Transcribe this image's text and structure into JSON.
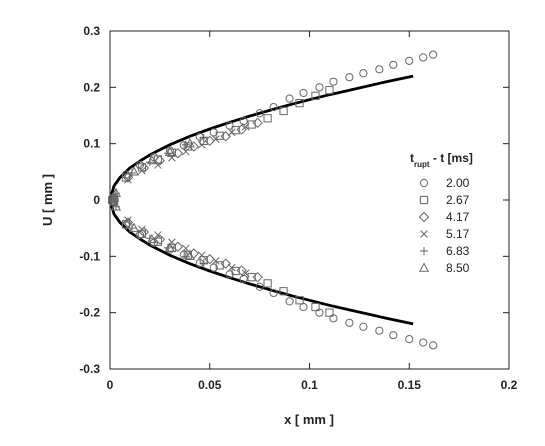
{
  "chart_data": {
    "type": "scatter",
    "xlabel": "x [ mm ]",
    "ylabel": "U [ mm ]",
    "xlim": [
      0,
      0.2
    ],
    "ylim": [
      -0.3,
      0.3
    ],
    "x_ticks": [
      "0",
      "0.05",
      "0.1",
      "0.15",
      "0.2"
    ],
    "y_ticks": [
      "0.3",
      "0.2",
      "0.1",
      "0",
      "-0.1",
      "-0.2",
      "-0.3"
    ],
    "x_tick_values": [
      0,
      0.05,
      0.1,
      0.15,
      0.2
    ],
    "y_tick_values": [
      0.3,
      0.2,
      0.1,
      0,
      -0.1,
      -0.2,
      -0.3
    ],
    "grid": false,
    "legend": {
      "position": "right",
      "title_main": "t",
      "title_sub": "rupt",
      "title_rest": " - t [ms]"
    },
    "fit_line": {
      "color": "#000000",
      "x": [
        0,
        0.002,
        0.005,
        0.01,
        0.015,
        0.02,
        0.03,
        0.04,
        0.05,
        0.06,
        0.07,
        0.08,
        0.09,
        0.1,
        0.11,
        0.12,
        0.13,
        0.14,
        0.152
      ],
      "upper": [
        0,
        0.025,
        0.04,
        0.057,
        0.069,
        0.08,
        0.098,
        0.113,
        0.126,
        0.138,
        0.149,
        0.159,
        0.169,
        0.178,
        0.187,
        0.195,
        0.203,
        0.211,
        0.22
      ],
      "lower": [
        0,
        -0.025,
        -0.04,
        -0.057,
        -0.069,
        -0.08,
        -0.098,
        -0.113,
        -0.126,
        -0.138,
        -0.149,
        -0.159,
        -0.169,
        -0.178,
        -0.187,
        -0.195,
        -0.203,
        -0.211,
        -0.22
      ]
    },
    "series": [
      {
        "name": "2.00",
        "marker": "circle",
        "x": [
          0.001,
          0.008,
          0.015,
          0.022,
          0.03,
          0.037,
          0.045,
          0.052,
          0.06,
          0.067,
          0.075,
          0.082,
          0.09,
          0.097,
          0.105,
          0.112,
          0.12,
          0.127,
          0.135,
          0.142,
          0.15,
          0.157,
          0.162
        ],
        "upper": [
          0.003,
          0.045,
          0.062,
          0.076,
          0.088,
          0.097,
          0.112,
          0.12,
          0.132,
          0.14,
          0.154,
          0.165,
          0.18,
          0.19,
          0.2,
          0.21,
          0.218,
          0.225,
          0.232,
          0.24,
          0.247,
          0.253,
          0.258
        ],
        "lower": [
          -0.003,
          -0.045,
          -0.062,
          -0.076,
          -0.088,
          -0.097,
          -0.112,
          -0.12,
          -0.132,
          -0.14,
          -0.154,
          -0.165,
          -0.18,
          -0.19,
          -0.2,
          -0.21,
          -0.218,
          -0.225,
          -0.232,
          -0.24,
          -0.247,
          -0.253,
          -0.258
        ]
      },
      {
        "name": "2.67",
        "marker": "square",
        "x": [
          0.002,
          0.008,
          0.016,
          0.024,
          0.031,
          0.039,
          0.047,
          0.055,
          0.063,
          0.071,
          0.079,
          0.087,
          0.095,
          0.103,
          0.11
        ],
        "upper": [
          0.003,
          0.04,
          0.058,
          0.072,
          0.084,
          0.095,
          0.105,
          0.114,
          0.124,
          0.134,
          0.145,
          0.158,
          0.172,
          0.185,
          0.195
        ],
        "lower": [
          -0.003,
          -0.043,
          -0.06,
          -0.074,
          -0.085,
          -0.097,
          -0.107,
          -0.116,
          -0.126,
          -0.137,
          -0.148,
          -0.162,
          -0.178,
          -0.19,
          -0.2
        ]
      },
      {
        "name": "4.17",
        "marker": "diamond",
        "x": [
          0.002,
          0.009,
          0.017,
          0.025,
          0.034,
          0.042,
          0.05,
          0.058,
          0.066,
          0.074
        ],
        "upper": [
          0.002,
          0.04,
          0.057,
          0.07,
          0.083,
          0.095,
          0.105,
          0.113,
          0.125,
          0.137
        ],
        "lower": [
          -0.002,
          -0.04,
          -0.057,
          -0.07,
          -0.083,
          -0.095,
          -0.105,
          -0.113,
          -0.125,
          -0.137
        ]
      },
      {
        "name": "5.17",
        "marker": "x",
        "x": [
          0.002,
          0.009,
          0.016,
          0.024,
          0.031,
          0.038,
          0.046,
          0.053,
          0.061,
          0.068
        ],
        "upper": [
          0.002,
          0.036,
          0.052,
          0.062,
          0.075,
          0.086,
          0.098,
          0.108,
          0.12,
          0.13
        ],
        "lower": [
          -0.002,
          -0.036,
          -0.052,
          -0.062,
          -0.075,
          -0.086,
          -0.098,
          -0.108,
          -0.12,
          -0.13
        ]
      },
      {
        "name": "6.83",
        "marker": "plus",
        "x": [
          0.003,
          0.011,
          0.02,
          0.029,
          0.038,
          0.047
        ],
        "upper": [
          0.012,
          0.048,
          0.067,
          0.083,
          0.098,
          0.11
        ],
        "lower": [
          -0.012,
          -0.05,
          -0.068,
          -0.085,
          -0.1,
          -0.112
        ]
      },
      {
        "name": "8.50",
        "marker": "triangle",
        "x": [
          0.003,
          0.012,
          0.021,
          0.03,
          0.04
        ],
        "upper": [
          0.012,
          0.05,
          0.07,
          0.085,
          0.1
        ],
        "lower": [
          -0.012,
          -0.05,
          -0.07,
          -0.085,
          -0.1
        ]
      }
    ]
  }
}
